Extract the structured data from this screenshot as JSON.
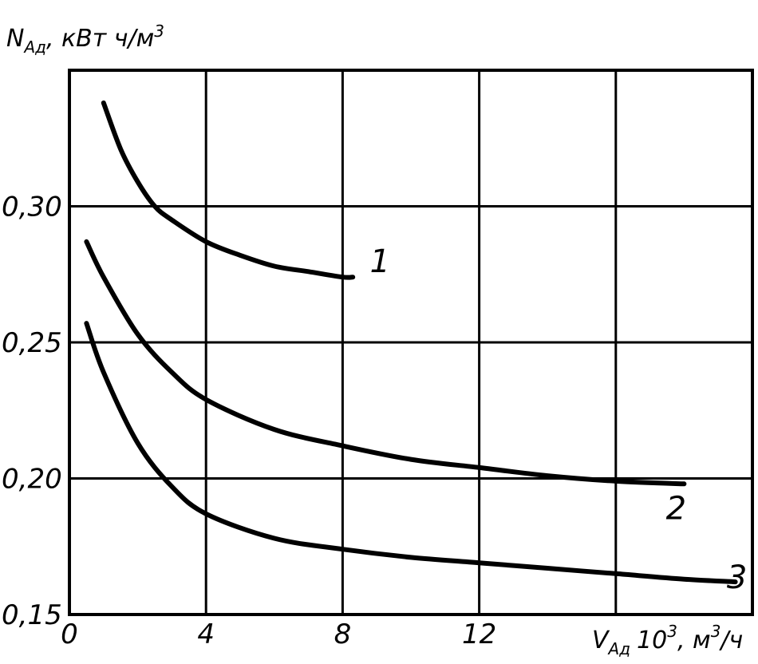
{
  "chart_data": {
    "type": "line",
    "ylabel": {
      "symbol": "N",
      "subscript": "Ад",
      "unit_prefix": ", кВт ч/м",
      "unit_sup": "3"
    },
    "xlabel": {
      "symbol": "V",
      "subscript": "Ад",
      "unit_prefix": "10",
      "unit_sup1": "3",
      "unit_mid": ", м",
      "unit_sup2": "3",
      "unit_suffix": "/ч"
    },
    "xlim": [
      0,
      20
    ],
    "ylim": [
      0.15,
      0.35
    ],
    "x_ticks": [
      0,
      4,
      8,
      12
    ],
    "x_tick_labels": [
      "0",
      "4",
      "8",
      "12"
    ],
    "y_ticks": [
      0.15,
      0.2,
      0.25,
      0.3
    ],
    "y_tick_labels": [
      "0,15",
      "0,20",
      "0,25",
      "0,30"
    ],
    "x_grid": [
      4,
      8,
      12,
      16
    ],
    "grid": true,
    "series": [
      {
        "name": "1",
        "x": [
          1.0,
          1.5,
          2.0,
          2.5,
          3.0,
          4.0,
          5.0,
          6.0,
          7.0,
          8.0,
          8.3
        ],
        "y": [
          0.338,
          0.321,
          0.309,
          0.3,
          0.295,
          0.287,
          0.282,
          0.278,
          0.276,
          0.274,
          0.274
        ]
      },
      {
        "name": "2",
        "x": [
          0.5,
          1.0,
          2.0,
          3.0,
          4.0,
          6.0,
          8.0,
          10.0,
          12.0,
          14.0,
          16.0,
          18.0
        ],
        "y": [
          0.287,
          0.274,
          0.253,
          0.239,
          0.229,
          0.218,
          0.212,
          0.207,
          0.204,
          0.201,
          0.199,
          0.198
        ]
      },
      {
        "name": "3",
        "x": [
          0.5,
          1.0,
          2.0,
          3.0,
          4.0,
          6.0,
          8.0,
          10.0,
          12.0,
          14.0,
          16.0,
          18.0,
          19.5
        ],
        "y": [
          0.257,
          0.239,
          0.213,
          0.197,
          0.187,
          0.178,
          0.174,
          0.171,
          0.169,
          0.167,
          0.165,
          0.163,
          0.162
        ]
      }
    ]
  }
}
